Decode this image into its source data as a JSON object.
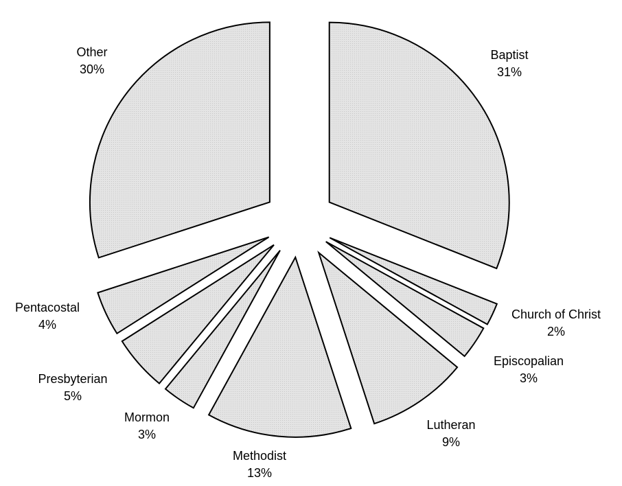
{
  "chart_data": {
    "type": "pie",
    "title": "",
    "slice_fill": "#e0e0e0",
    "slice_stroke": "#000000",
    "exploded": true,
    "start": "12 o'clock, clockwise",
    "slices": [
      {
        "category": "Baptist",
        "value": 31,
        "label": "31%"
      },
      {
        "category": "Church of Christ",
        "value": 2,
        "label": "2%"
      },
      {
        "category": "Episcopalian",
        "value": 3,
        "label": "3%"
      },
      {
        "category": "Lutheran",
        "value": 9,
        "label": "9%"
      },
      {
        "category": "Methodist",
        "value": 13,
        "label": "13%"
      },
      {
        "category": "Mormon",
        "value": 3,
        "label": "3%"
      },
      {
        "category": "Presbyterian",
        "value": 5,
        "label": "5%"
      },
      {
        "category": "Pentacostal",
        "value": 4,
        "label": "4%"
      },
      {
        "category": "Other",
        "value": 30,
        "label": "30%"
      }
    ]
  }
}
